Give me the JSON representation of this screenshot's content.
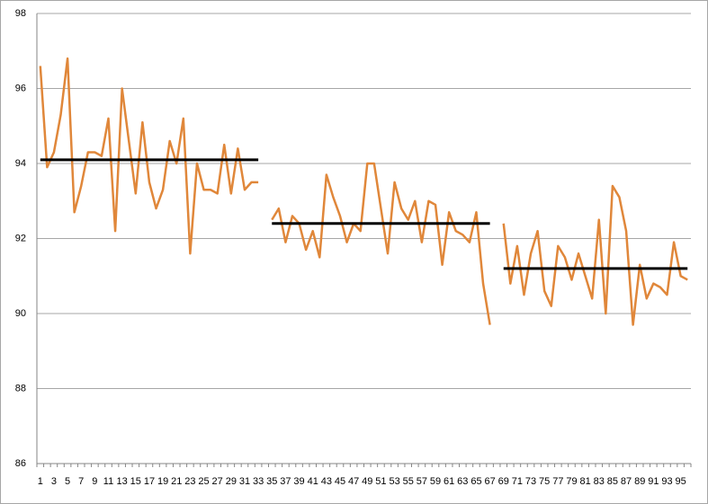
{
  "chart_data": {
    "type": "line",
    "categories": [
      1,
      null,
      3,
      null,
      5,
      null,
      7,
      null,
      9,
      null,
      11,
      null,
      13,
      null,
      15,
      null,
      17,
      null,
      19,
      null,
      21,
      null,
      23,
      null,
      25,
      null,
      27,
      null,
      29,
      null,
      31,
      null,
      33,
      null,
      35,
      null,
      37,
      null,
      39,
      null,
      41,
      null,
      43,
      null,
      45,
      null,
      47,
      null,
      49,
      null,
      51,
      null,
      53,
      null,
      55,
      null,
      57,
      null,
      59,
      null,
      61,
      null,
      63,
      null,
      65,
      null,
      67,
      null,
      69,
      null,
      71,
      null,
      73,
      null,
      75,
      null,
      77,
      null,
      79,
      null,
      81,
      null,
      83,
      null,
      85,
      null,
      87,
      null,
      89,
      null,
      91,
      null,
      93,
      null,
      95,
      null
    ],
    "series": [
      {
        "color": "#e0873a",
        "values": [
          96.6,
          93.9,
          94.3,
          95.3,
          96.8,
          92.7,
          93.4,
          94.3,
          94.3,
          94.2,
          95.2,
          92.2,
          96.0,
          94.6,
          93.2,
          95.1,
          93.5,
          92.8,
          93.3,
          94.6,
          94.0,
          95.2,
          91.6,
          94.0,
          93.3,
          93.3,
          93.2,
          94.5,
          93.2,
          94.4,
          93.3,
          93.5,
          93.5,
          null,
          92.5,
          92.8,
          91.9,
          92.6,
          92.4,
          91.7,
          92.2,
          91.5,
          93.7,
          93.1,
          92.6,
          91.9,
          92.4,
          92.2,
          94.0,
          94.0,
          92.8,
          91.6,
          93.5,
          92.8,
          92.5,
          93.0,
          91.9,
          93.0,
          92.9,
          91.3,
          92.7,
          92.2,
          92.1,
          91.9,
          92.7,
          90.8,
          89.7,
          null,
          92.4,
          90.8,
          91.8,
          90.5,
          91.6,
          92.2,
          90.6,
          90.2,
          91.8,
          91.5,
          90.9,
          91.6,
          91.0,
          90.4,
          92.5,
          90.0,
          93.4,
          93.1,
          92.2,
          89.7,
          91.3,
          90.4,
          90.8,
          90.7,
          90.5,
          91.9,
          91.0,
          90.9
        ]
      },
      {
        "color": "#000000",
        "values": [
          94.1,
          94.1,
          94.1,
          94.1,
          94.1,
          94.1,
          94.1,
          94.1,
          94.1,
          94.1,
          94.1,
          94.1,
          94.1,
          94.1,
          94.1,
          94.1,
          94.1,
          94.1,
          94.1,
          94.1,
          94.1,
          94.1,
          94.1,
          94.1,
          94.1,
          94.1,
          94.1,
          94.1,
          94.1,
          94.1,
          94.1,
          94.1,
          94.1,
          null,
          92.4,
          92.4,
          92.4,
          92.4,
          92.4,
          92.4,
          92.4,
          92.4,
          92.4,
          92.4,
          92.4,
          92.4,
          92.4,
          92.4,
          92.4,
          92.4,
          92.4,
          92.4,
          92.4,
          92.4,
          92.4,
          92.4,
          92.4,
          92.4,
          92.4,
          92.4,
          92.4,
          92.4,
          92.4,
          92.4,
          92.4,
          92.4,
          92.4,
          null,
          91.2,
          91.2,
          91.2,
          91.2,
          91.2,
          91.2,
          91.2,
          91.2,
          91.2,
          91.2,
          91.2,
          91.2,
          91.2,
          91.2,
          91.2,
          91.2,
          91.2,
          91.2,
          91.2,
          91.2,
          91.2,
          91.2,
          91.2,
          91.2,
          91.2,
          91.2,
          91.2,
          91.2
        ]
      }
    ],
    "ylim": [
      86,
      98
    ],
    "yticks": [
      86,
      88,
      90,
      92,
      94,
      96,
      98
    ],
    "grid": true
  }
}
